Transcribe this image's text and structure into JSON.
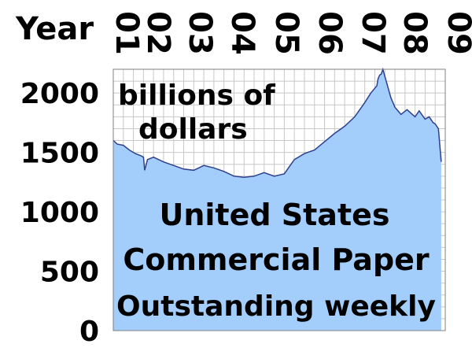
{
  "chart_data": {
    "type": "area",
    "title_lines": [
      "United States",
      "Commercial Paper",
      "Outstanding weekly"
    ],
    "ylabel_lines": [
      "billions of",
      "dollars"
    ],
    "xlabel": "Year",
    "x_ticks": [
      "01",
      "02",
      "03",
      "04",
      "05",
      "06",
      "07",
      "08",
      "09"
    ],
    "y_ticks": [
      "0",
      "500",
      "1000",
      "1500",
      "2000"
    ],
    "ylim": [
      0,
      2200
    ],
    "xlim": [
      2001.0,
      2009.25
    ],
    "grid": true,
    "series": [
      {
        "x": [
          2001.0,
          2001.1,
          2001.25,
          2001.4,
          2001.55,
          2001.7,
          2001.75,
          2001.78,
          2001.85,
          2002.0,
          2002.25,
          2002.5,
          2002.75,
          2003.0,
          2003.25,
          2003.5,
          2003.75,
          2004.0,
          2004.25,
          2004.5,
          2004.75,
          2005.0,
          2005.25,
          2005.5,
          2005.75,
          2006.0,
          2006.25,
          2006.5,
          2006.75,
          2007.0,
          2007.25,
          2007.4,
          2007.55,
          2007.58,
          2007.62,
          2007.66,
          2007.7,
          2007.8,
          2007.9,
          2008.0,
          2008.15,
          2008.3,
          2008.5,
          2008.6,
          2008.75,
          2008.85,
          2008.95,
          2009.0,
          2009.08,
          2009.15
        ],
        "values": [
          1600,
          1570,
          1560,
          1520,
          1490,
          1470,
          1460,
          1350,
          1440,
          1460,
          1420,
          1390,
          1360,
          1350,
          1390,
          1370,
          1340,
          1300,
          1290,
          1300,
          1330,
          1300,
          1320,
          1440,
          1490,
          1520,
          1590,
          1660,
          1720,
          1800,
          1920,
          2000,
          2060,
          2120,
          2150,
          2160,
          2200,
          2080,
          1960,
          1880,
          1820,
          1860,
          1800,
          1850,
          1780,
          1800,
          1750,
          1740,
          1700,
          1420
        ]
      }
    ],
    "colors": {
      "fill": "#a3cdfb",
      "line": "#2e3f8f",
      "grid": "#c8c8c8",
      "axis": "#808080"
    }
  }
}
